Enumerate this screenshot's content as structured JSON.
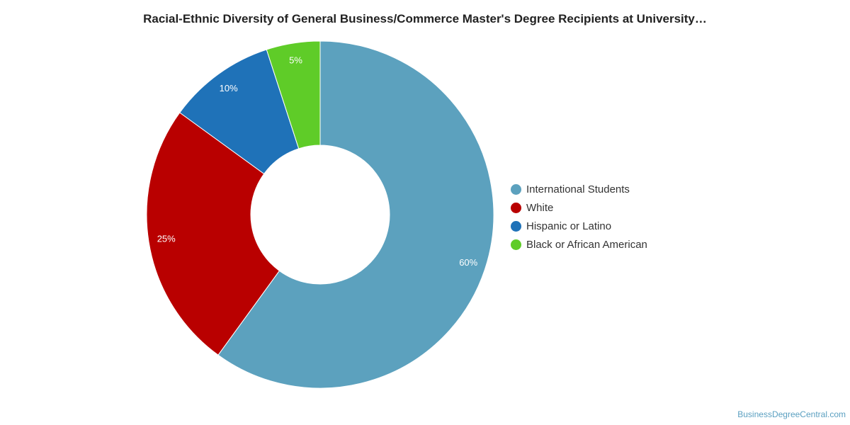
{
  "chart_data": {
    "type": "pie",
    "title": "Racial-Ethnic Diversity of General Business/Commerce Master's Degree Recipients at University…",
    "donut": true,
    "categories": [
      "International Students",
      "White",
      "Hispanic or Latino",
      "Black or African American"
    ],
    "values": [
      60,
      25,
      10,
      5
    ],
    "value_labels": [
      "60%",
      "25%",
      "10%",
      "5%"
    ],
    "colors": [
      "#5ca1be",
      "#b90000",
      "#1f72b8",
      "#5fcc28"
    ],
    "legend_position": "right"
  },
  "credit": "BusinessDegreeCentral.com"
}
